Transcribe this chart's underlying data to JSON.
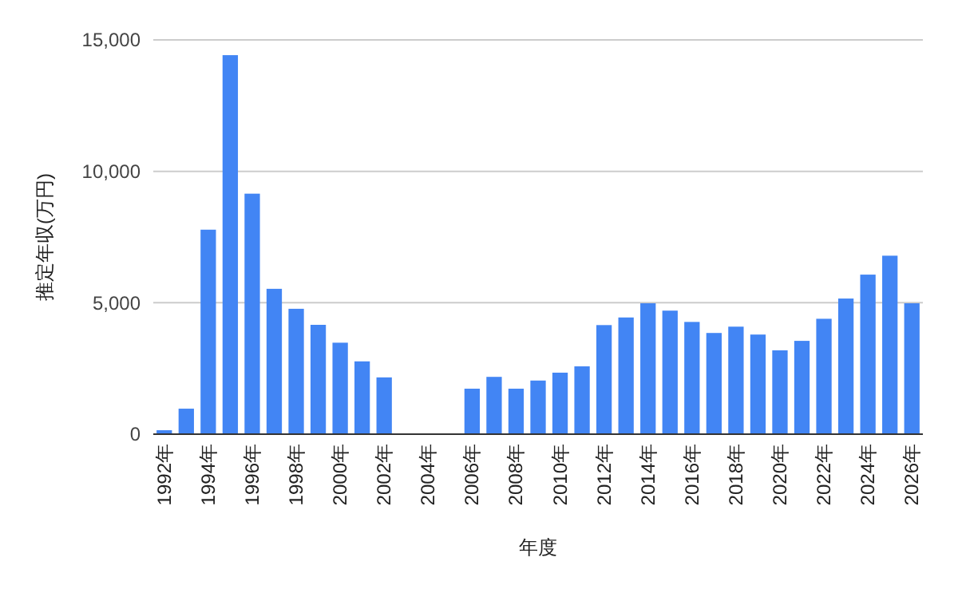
{
  "chart_data": {
    "type": "bar",
    "xlabel": "年度",
    "ylabel": "推定年収(万円)",
    "categories": [
      "1992年",
      null,
      "1994年",
      null,
      "1996年",
      null,
      "1998年",
      null,
      "2000年",
      null,
      "2002年",
      null,
      "2004年",
      null,
      "2006年",
      null,
      "2008年",
      null,
      "2010年",
      null,
      "2012年",
      null,
      "2014年",
      null,
      "2016年",
      null,
      "2018年",
      null,
      "2020年",
      null,
      "2022年",
      null,
      "2024年",
      null,
      "2026年"
    ],
    "values": [
      150,
      970,
      7780,
      14420,
      9150,
      5530,
      4770,
      4160,
      3480,
      2770,
      2160,
      null,
      null,
      null,
      1730,
      2180,
      1730,
      2040,
      2340,
      2580,
      4150,
      4440,
      4980,
      4700,
      4270,
      3850,
      4090,
      3790,
      3190,
      3550,
      4390,
      5160,
      6070,
      6790,
      4980
    ],
    "color": "#4285f4",
    "ylim": [
      0,
      15000
    ],
    "yticks": [
      {
        "value": 0,
        "label": "0"
      },
      {
        "value": 5000,
        "label": "5,000"
      },
      {
        "value": 10000,
        "label": "10,000"
      },
      {
        "value": 15000,
        "label": "15,000"
      }
    ],
    "grid": true
  }
}
